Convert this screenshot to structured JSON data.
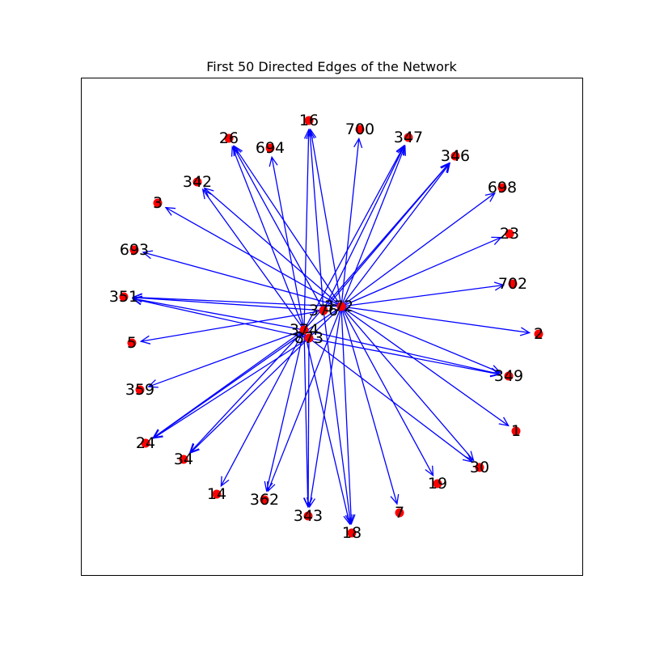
{
  "chart": {
    "title": "First 50 Directed Edges of the Network",
    "colors": {
      "node": "#ff0000",
      "edge": "#0000ff",
      "frame": "#000000"
    },
    "nodes": [
      {
        "id": "16",
        "label": "16"
      },
      {
        "id": "700",
        "label": "700"
      },
      {
        "id": "347",
        "label": "347"
      },
      {
        "id": "346",
        "label": "346"
      },
      {
        "id": "698",
        "label": "698"
      },
      {
        "id": "23",
        "label": "23"
      },
      {
        "id": "702",
        "label": "702"
      },
      {
        "id": "2",
        "label": "2"
      },
      {
        "id": "349",
        "label": "349"
      },
      {
        "id": "1",
        "label": "1"
      },
      {
        "id": "30",
        "label": "30"
      },
      {
        "id": "19",
        "label": "19"
      },
      {
        "id": "7",
        "label": "7"
      },
      {
        "id": "18",
        "label": "18"
      },
      {
        "id": "343",
        "label": "343"
      },
      {
        "id": "362",
        "label": "362"
      },
      {
        "id": "14",
        "label": "14"
      },
      {
        "id": "34",
        "label": "34"
      },
      {
        "id": "24",
        "label": "24"
      },
      {
        "id": "359",
        "label": "359"
      },
      {
        "id": "5",
        "label": "5"
      },
      {
        "id": "351",
        "label": "351"
      },
      {
        "id": "693",
        "label": "693"
      },
      {
        "id": "3",
        "label": "3"
      },
      {
        "id": "342",
        "label": "342"
      },
      {
        "id": "26",
        "label": "26"
      },
      {
        "id": "694",
        "label": "694"
      },
      {
        "id": "372",
        "label": "372"
      },
      {
        "id": "376",
        "label": "376"
      },
      {
        "id": "374",
        "label": "374"
      },
      {
        "id": "873",
        "label": "873"
      }
    ],
    "edges": [
      [
        "372",
        "16"
      ],
      [
        "372",
        "700"
      ],
      [
        "372",
        "347"
      ],
      [
        "372",
        "346"
      ],
      [
        "372",
        "698"
      ],
      [
        "372",
        "23"
      ],
      [
        "372",
        "702"
      ],
      [
        "372",
        "2"
      ],
      [
        "372",
        "349"
      ],
      [
        "372",
        "1"
      ],
      [
        "372",
        "30"
      ],
      [
        "372",
        "19"
      ],
      [
        "372",
        "7"
      ],
      [
        "372",
        "18"
      ],
      [
        "372",
        "343"
      ],
      [
        "372",
        "362"
      ],
      [
        "372",
        "24"
      ],
      [
        "372",
        "351"
      ],
      [
        "372",
        "693"
      ],
      [
        "372",
        "3"
      ],
      [
        "372",
        "342"
      ],
      [
        "372",
        "26"
      ],
      [
        "372",
        "34"
      ],
      [
        "376",
        "16"
      ],
      [
        "376",
        "347"
      ],
      [
        "376",
        "346"
      ],
      [
        "376",
        "351"
      ],
      [
        "376",
        "5"
      ],
      [
        "376",
        "18"
      ],
      [
        "376",
        "26"
      ],
      [
        "374",
        "694"
      ],
      [
        "374",
        "26"
      ],
      [
        "374",
        "342"
      ],
      [
        "374",
        "346"
      ],
      [
        "374",
        "347"
      ],
      [
        "374",
        "349"
      ],
      [
        "374",
        "18"
      ],
      [
        "374",
        "343"
      ],
      [
        "374",
        "362"
      ],
      [
        "374",
        "14"
      ],
      [
        "374",
        "34"
      ],
      [
        "374",
        "24"
      ],
      [
        "374",
        "359"
      ],
      [
        "374",
        "351"
      ],
      [
        "374",
        "16"
      ],
      [
        "873",
        "24"
      ],
      [
        "873",
        "30"
      ],
      [
        "873",
        "349"
      ],
      [
        "873",
        "343"
      ],
      [
        "873",
        "351"
      ]
    ]
  }
}
